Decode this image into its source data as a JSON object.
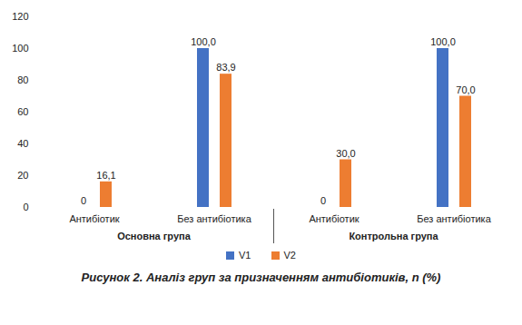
{
  "chart_data": {
    "type": "bar",
    "title": "Рисунок 2. Аналіз груп за призначенням антибіотиків, n (%)",
    "categories": [
      "Антибіотик",
      "Без антибіотика",
      "Антибіотик",
      "Без антибіотика"
    ],
    "groups": [
      "Основна група",
      "Основна група",
      "Контрольна група",
      "Контрольна група"
    ],
    "series": [
      {
        "name": "V1",
        "color": "#4472c4",
        "values": [
          0,
          100,
          0,
          100
        ],
        "value_labels": [
          "0",
          "100,0",
          "0",
          "100,0"
        ]
      },
      {
        "name": "V2",
        "color": "#ed7d31",
        "values": [
          16.1,
          83.9,
          30,
          70
        ],
        "value_labels": [
          "16,1",
          "83,9",
          "30,0",
          "70,0"
        ]
      }
    ],
    "ylim": [
      0,
      120
    ],
    "yticks": [
      0,
      20,
      40,
      60,
      80,
      100,
      120
    ],
    "grid": false,
    "legend": "bottom",
    "data_labels": true
  }
}
